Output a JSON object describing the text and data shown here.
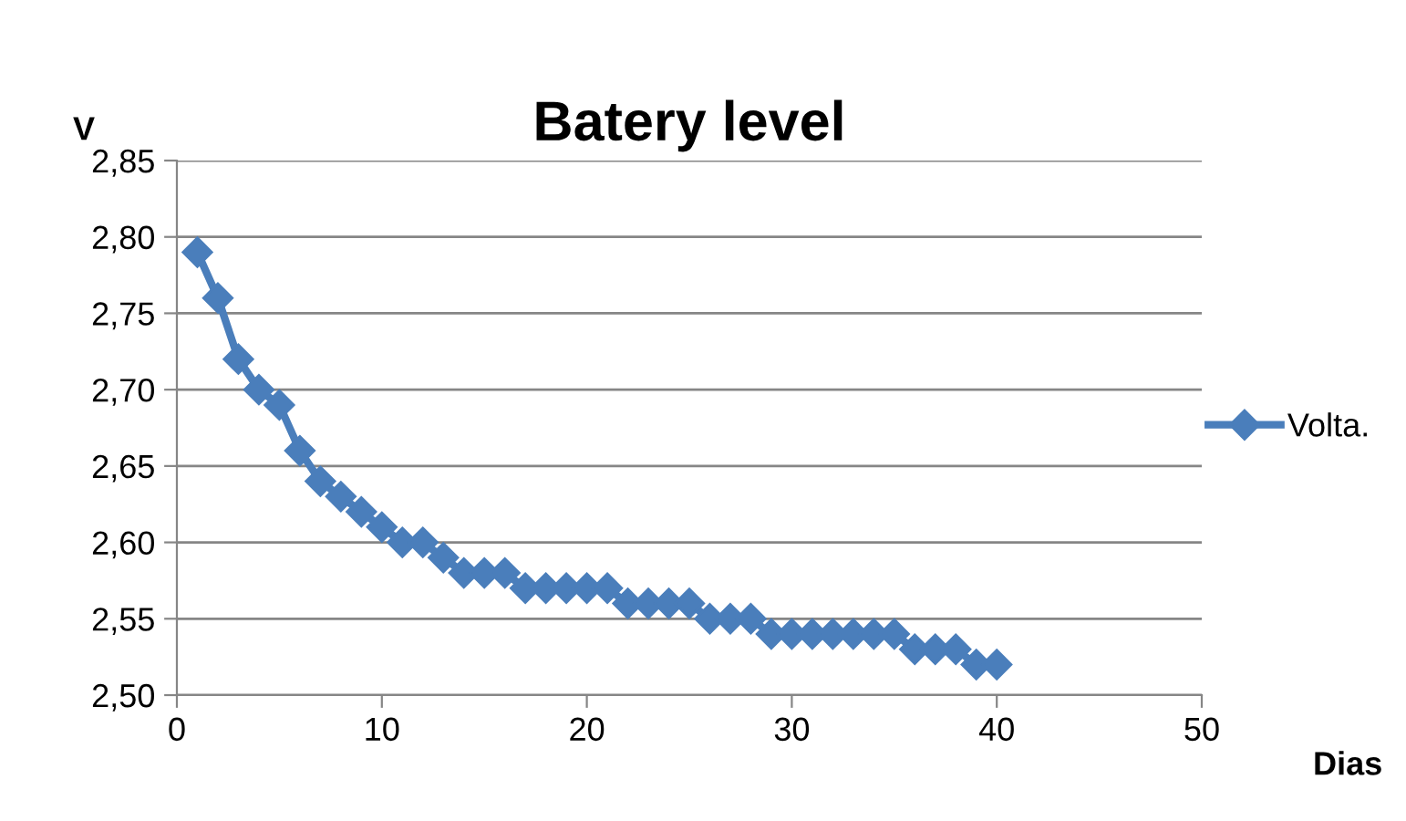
{
  "chart_data": {
    "type": "line",
    "title": "Batery level",
    "xlabel": "Dias",
    "ylabel": "V",
    "x": [
      1,
      2,
      3,
      4,
      5,
      6,
      7,
      8,
      9,
      10,
      11,
      12,
      13,
      14,
      15,
      16,
      17,
      18,
      19,
      20,
      21,
      22,
      23,
      24,
      25,
      26,
      27,
      28,
      29,
      30,
      31,
      32,
      33,
      34,
      35,
      36,
      37,
      38,
      39,
      40
    ],
    "series": [
      {
        "name": "Volta.",
        "color": "#4a7ebb",
        "values": [
          2.79,
          2.76,
          2.72,
          2.7,
          2.69,
          2.66,
          2.64,
          2.63,
          2.62,
          2.61,
          2.6,
          2.6,
          2.59,
          2.58,
          2.58,
          2.58,
          2.57,
          2.57,
          2.57,
          2.57,
          2.57,
          2.56,
          2.56,
          2.56,
          2.56,
          2.55,
          2.55,
          2.55,
          2.54,
          2.54,
          2.54,
          2.54,
          2.54,
          2.54,
          2.54,
          2.53,
          2.53,
          2.53,
          2.52,
          2.52
        ]
      }
    ],
    "xlim": [
      0,
      50
    ],
    "xticks": [
      0,
      10,
      20,
      30,
      40,
      50
    ],
    "ylim": [
      2.5,
      2.85
    ],
    "yticks": [
      {
        "value": 2.5,
        "label": "2,50"
      },
      {
        "value": 2.55,
        "label": "2,55"
      },
      {
        "value": 2.6,
        "label": "2,60"
      },
      {
        "value": 2.65,
        "label": "2,65"
      },
      {
        "value": 2.7,
        "label": "2,70"
      },
      {
        "value": 2.75,
        "label": "2,75"
      },
      {
        "value": 2.8,
        "label": "2,80"
      },
      {
        "value": 2.85,
        "label": "2,85"
      }
    ],
    "grid": "y",
    "legend": "right",
    "marker": "diamond",
    "line_style": "solid"
  }
}
